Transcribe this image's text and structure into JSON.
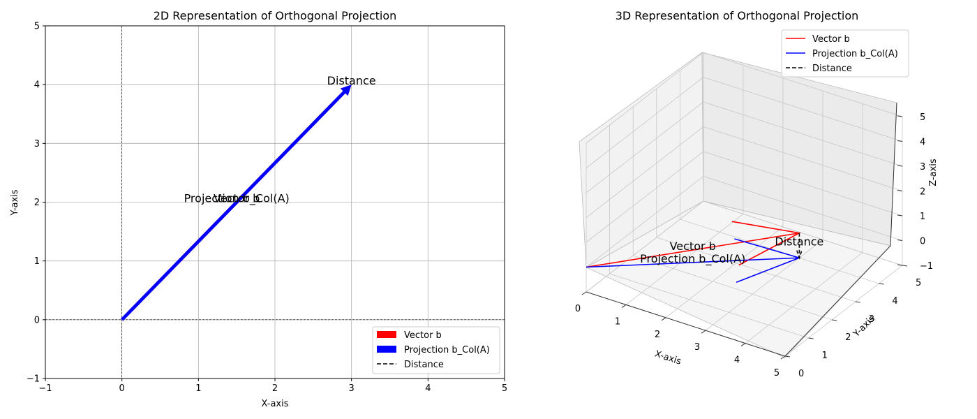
{
  "chart_data": [
    {
      "type": "quiver",
      "title": "2D Representation of Orthogonal Projection",
      "xlabel": "X-axis",
      "ylabel": "Y-axis",
      "xlim": [
        -1,
        5
      ],
      "ylim": [
        -1,
        5
      ],
      "xticks": [
        "−1",
        "0",
        "1",
        "2",
        "3",
        "4",
        "5"
      ],
      "yticks": [
        "−1",
        "0",
        "1",
        "2",
        "3",
        "4",
        "5"
      ],
      "grid": true,
      "legend_position": "lower-right",
      "series": [
        {
          "name": "Vector b",
          "color": "#ff0000",
          "from": [
            0,
            0
          ],
          "to": [
            3,
            4
          ]
        },
        {
          "name": "Projection b_Col(A)",
          "color": "#0000ff",
          "from": [
            0,
            0
          ],
          "to": [
            3,
            4
          ]
        },
        {
          "name": "Distance",
          "color": "#000000",
          "style": "dashed",
          "from": [
            3,
            4
          ],
          "to": [
            3,
            4
          ]
        }
      ],
      "annotations": [
        {
          "text": "Vector b",
          "x": 1.5,
          "y": 2
        },
        {
          "text": "Projection b_Col(A)",
          "x": 1.5,
          "y": 2
        },
        {
          "text": "Distance",
          "x": 3,
          "y": 4
        }
      ]
    },
    {
      "type": "quiver3d",
      "title": "3D Representation of Orthogonal Projection",
      "xlabel": "X-axis",
      "ylabel": "Y-axis",
      "zlabel": "Z-axis",
      "xlim": [
        0,
        5
      ],
      "ylim": [
        0,
        5
      ],
      "zlim": [
        -1,
        5
      ],
      "xticks": [
        "0",
        "1",
        "2",
        "3",
        "4",
        "5"
      ],
      "yticks": [
        "0",
        "1",
        "2",
        "3",
        "4",
        "5"
      ],
      "zticks": [
        "−1",
        "0",
        "1",
        "2",
        "3",
        "4",
        "5"
      ],
      "legend_position": "top-right",
      "series": [
        {
          "name": "Vector b",
          "color": "#ff0000",
          "from": [
            0,
            0,
            0
          ],
          "to": [
            3,
            4,
            0
          ]
        },
        {
          "name": "Projection b_Col(A)",
          "color": "#0000ff",
          "from": [
            0,
            0,
            0
          ],
          "to": [
            3,
            4,
            -1
          ]
        },
        {
          "name": "Distance",
          "color": "#000000",
          "style": "dashed",
          "from": [
            3,
            4,
            0
          ],
          "to": [
            3,
            4,
            -1
          ]
        }
      ],
      "annotations": [
        {
          "text": "Vector b",
          "x": 1.5,
          "y": 2,
          "z": 0
        },
        {
          "text": "Projection b_Col(A)",
          "x": 1.5,
          "y": 2,
          "z": -0.5
        },
        {
          "text": "Distance",
          "x": 3,
          "y": 4,
          "z": -0.5
        }
      ]
    }
  ]
}
